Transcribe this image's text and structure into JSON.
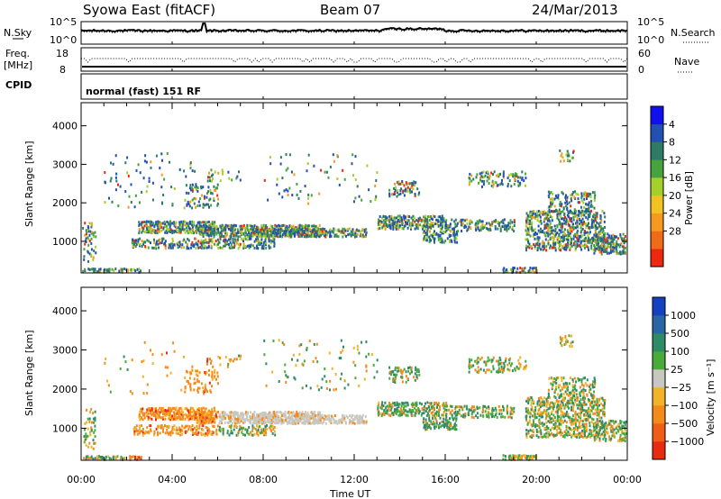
{
  "header": {
    "station": "Syowa East (fitACF)",
    "beam": "Beam 07",
    "date": "24/Mar/2013"
  },
  "side_labels": {
    "nsky": "N.Sky",
    "freq_line1": "Freq.",
    "freq_line2": "[MHz]",
    "cpid": "CPID",
    "nsearch": "N.Search",
    "nave": "Nave"
  },
  "cpid_text": "normal (fast) 151 RF",
  "chart_data": [
    {
      "type": "line",
      "name": "noise",
      "ytick_labels": [
        "10^5",
        "10^0"
      ],
      "right_ytick_labels": [
        "10^5",
        "10^0"
      ],
      "series": [
        {
          "name": "N.Sky",
          "style": "solid"
        },
        {
          "name": "N.Search",
          "style": "dotted"
        }
      ]
    },
    {
      "type": "line",
      "name": "frequency",
      "ytick_labels": [
        "18",
        "8"
      ],
      "right_ytick_labels": [
        "60",
        "0"
      ],
      "series": [
        {
          "name": "Freq.",
          "style": "dotted",
          "approx_value": 12
        },
        {
          "name": "Nave",
          "style": "dotted"
        }
      ]
    },
    {
      "type": "heatmap",
      "name": "power",
      "xlabel": "",
      "ylabel": "Slant Range [km]",
      "ylim": [
        180,
        4600
      ],
      "yticks": [
        1000,
        2000,
        3000,
        4000
      ],
      "xlim": [
        0,
        24
      ],
      "xticks": [
        "00:00",
        "04:00",
        "08:00",
        "12:00",
        "16:00",
        "20:00",
        "00:00"
      ],
      "colorbar": {
        "label": "Power [dB]",
        "ticks": [
          "4",
          "8",
          "12",
          "16",
          "20",
          "24",
          "28"
        ],
        "colors": [
          "#1010ee",
          "#2250b0",
          "#2f7a64",
          "#47a33d",
          "#a5cf2a",
          "#f2c223",
          "#f59a1f",
          "#f06a18",
          "#ee2810"
        ]
      }
    },
    {
      "type": "heatmap",
      "name": "velocity",
      "xlabel": "Time UT",
      "ylabel": "Slant Range [km]",
      "ylim": [
        180,
        4600
      ],
      "yticks": [
        1000,
        2000,
        3000,
        4000
      ],
      "xlim": [
        0,
        24
      ],
      "xticks": [
        "00:00",
        "04:00",
        "08:00",
        "12:00",
        "16:00",
        "20:00",
        "00:00"
      ],
      "colorbar": {
        "label": "Velocity [m s⁻¹]",
        "ticks": [
          "1000",
          "500",
          "100",
          "25",
          "−25",
          "−100",
          "−500",
          "−1000"
        ],
        "colors": [
          "#1540c0",
          "#2a66a4",
          "#2f8a68",
          "#4aab3a",
          "#c8c8c0",
          "#f2b22a",
          "#f38a1c",
          "#ef5d16",
          "#e82a10"
        ]
      }
    }
  ]
}
